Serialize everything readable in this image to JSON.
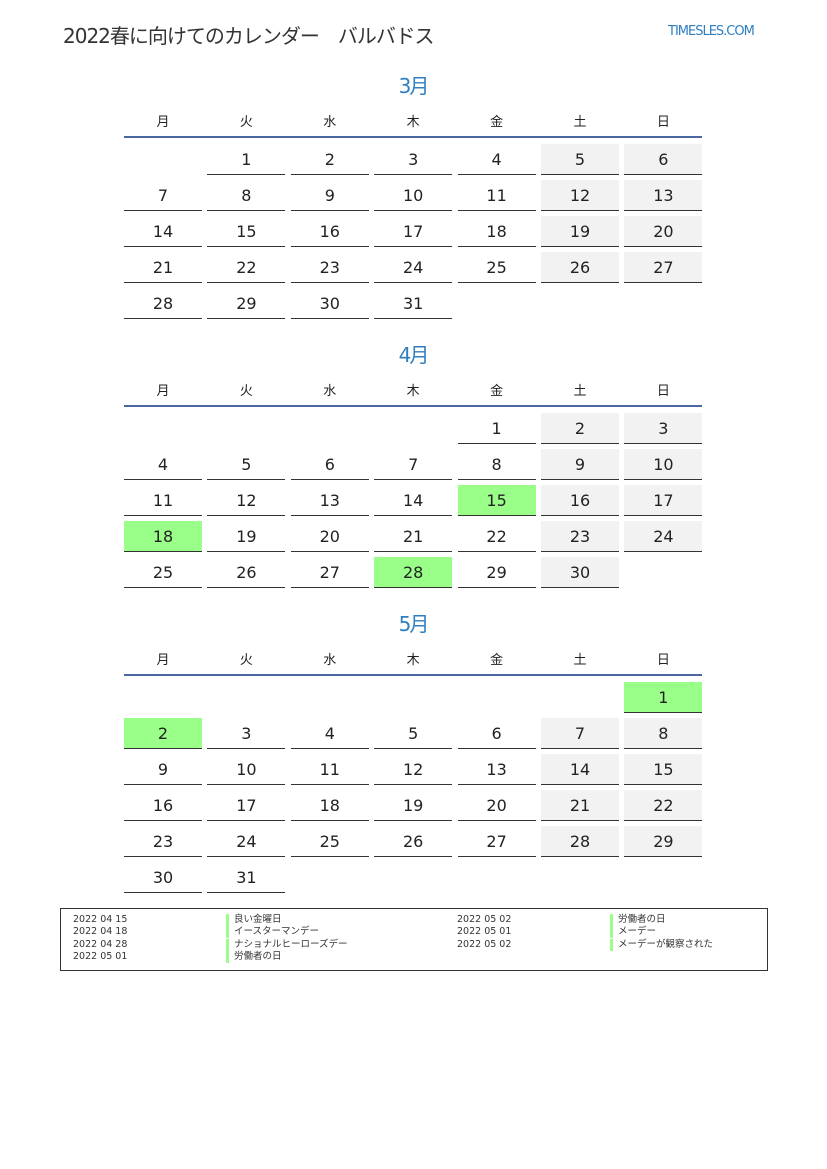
{
  "header": {
    "title": "2022春に向けてのカレンダー　バルバドス",
    "logo": "TIMESLES.COM"
  },
  "weekdays": [
    "月",
    "火",
    "水",
    "木",
    "金",
    "土",
    "日"
  ],
  "colors": {
    "accent": "#2f7fc1",
    "weekend": "#f2f2f2",
    "holiday": "#99ff88",
    "rule": "#4a67a0"
  },
  "months": [
    {
      "title": "3月",
      "weeks": [
        [
          null,
          1,
          2,
          3,
          4,
          5,
          6
        ],
        [
          7,
          8,
          9,
          10,
          11,
          12,
          13
        ],
        [
          14,
          15,
          16,
          17,
          18,
          19,
          20
        ],
        [
          21,
          22,
          23,
          24,
          25,
          26,
          27
        ],
        [
          28,
          29,
          30,
          31,
          null,
          null,
          null
        ]
      ],
      "holidays": []
    },
    {
      "title": "4月",
      "weeks": [
        [
          null,
          null,
          null,
          null,
          1,
          2,
          3
        ],
        [
          4,
          5,
          6,
          7,
          8,
          9,
          10
        ],
        [
          11,
          12,
          13,
          14,
          15,
          16,
          17
        ],
        [
          18,
          19,
          20,
          21,
          22,
          23,
          24
        ],
        [
          25,
          26,
          27,
          28,
          29,
          30,
          null
        ]
      ],
      "holidays": [
        15,
        18,
        28
      ]
    },
    {
      "title": "5月",
      "weeks": [
        [
          null,
          null,
          null,
          null,
          null,
          null,
          1
        ],
        [
          2,
          3,
          4,
          5,
          6,
          7,
          8
        ],
        [
          9,
          10,
          11,
          12,
          13,
          14,
          15
        ],
        [
          16,
          17,
          18,
          19,
          20,
          21,
          22
        ],
        [
          23,
          24,
          25,
          26,
          27,
          28,
          29
        ],
        [
          30,
          31,
          null,
          null,
          null,
          null,
          null
        ]
      ],
      "holidays": [
        1,
        2
      ]
    }
  ],
  "legend": [
    {
      "date": "2022 04 15",
      "name": "良い金曜日"
    },
    {
      "date": "2022 04 18",
      "name": "イースターマンデー"
    },
    {
      "date": "2022 04 28",
      "name": "ナショナルヒーローズデー"
    },
    {
      "date": "2022 05 01",
      "name": "労働者の日"
    },
    {
      "date": "2022 05 02",
      "name": "労働者の日"
    },
    {
      "date": "2022 05 01",
      "name": "メーデー"
    },
    {
      "date": "2022 05 02",
      "name": "メーデーが観察された"
    }
  ]
}
